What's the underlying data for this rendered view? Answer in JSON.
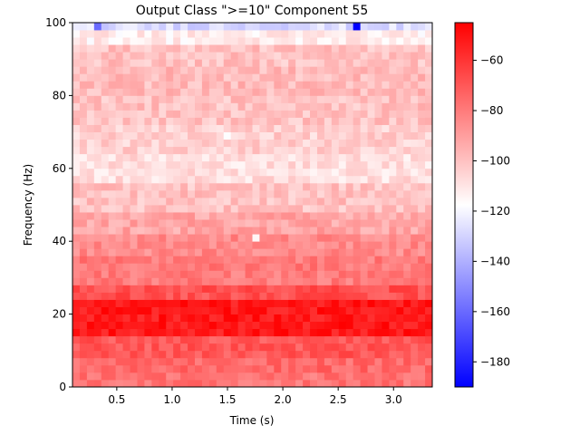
{
  "chart_data": {
    "type": "heatmap",
    "title": "Output Class \">=10\" Component 55",
    "xlabel": "Time (s)",
    "ylabel": "Frequency (Hz)",
    "xlim": [
      0.1,
      3.35
    ],
    "ylim": [
      0,
      100
    ],
    "xticks": [
      0.5,
      1.0,
      1.5,
      2.0,
      2.5,
      3.0
    ],
    "xtick_labels": [
      "0.5",
      "1.0",
      "1.5",
      "2.0",
      "2.5",
      "3.0"
    ],
    "yticks": [
      0,
      20,
      40,
      60,
      80,
      100
    ],
    "ytick_labels": [
      "0",
      "20",
      "40",
      "60",
      "80",
      "100"
    ],
    "colormap": "bwr",
    "color_low": "#0000ff",
    "color_mid": "#ffffff",
    "color_high": "#ff0000",
    "vmin": -190,
    "vmax": -45,
    "colorbar_ticks": [
      -60,
      -80,
      -100,
      -120,
      -140,
      -160,
      -180
    ],
    "colorbar_tick_labels": [
      "−60",
      "−80",
      "−100",
      "−120",
      "−140",
      "−160",
      "−180"
    ],
    "n_time_bins": 50,
    "freq_bin_hz": 2,
    "band_profile": [
      {
        "f0": 0,
        "f1": 4,
        "value": -78
      },
      {
        "f0": 4,
        "f1": 8,
        "value": -75
      },
      {
        "f0": 8,
        "f1": 14,
        "value": -70
      },
      {
        "f0": 14,
        "f1": 24,
        "value": -52
      },
      {
        "f0": 24,
        "f1": 28,
        "value": -68
      },
      {
        "f0": 28,
        "f1": 36,
        "value": -80
      },
      {
        "f0": 36,
        "f1": 42,
        "value": -84
      },
      {
        "f0": 42,
        "f1": 48,
        "value": -92
      },
      {
        "f0": 48,
        "f1": 56,
        "value": -100
      },
      {
        "f0": 56,
        "f1": 64,
        "value": -108
      },
      {
        "f0": 64,
        "f1": 72,
        "value": -104
      },
      {
        "f0": 72,
        "f1": 80,
        "value": -100
      },
      {
        "f0": 80,
        "f1": 88,
        "value": -98
      },
      {
        "f0": 88,
        "f1": 94,
        "value": -100
      },
      {
        "f0": 94,
        "f1": 98,
        "value": -112
      },
      {
        "f0": 98,
        "f1": 100,
        "value": -128
      }
    ],
    "notable_cells": [
      {
        "t": 2.69,
        "f": 99,
        "value": -190
      },
      {
        "t": 0.32,
        "f": 99,
        "value": -160
      },
      {
        "t": 1.51,
        "f": 69,
        "value": -118
      },
      {
        "t": 1.78,
        "f": 41,
        "value": -115
      }
    ]
  }
}
